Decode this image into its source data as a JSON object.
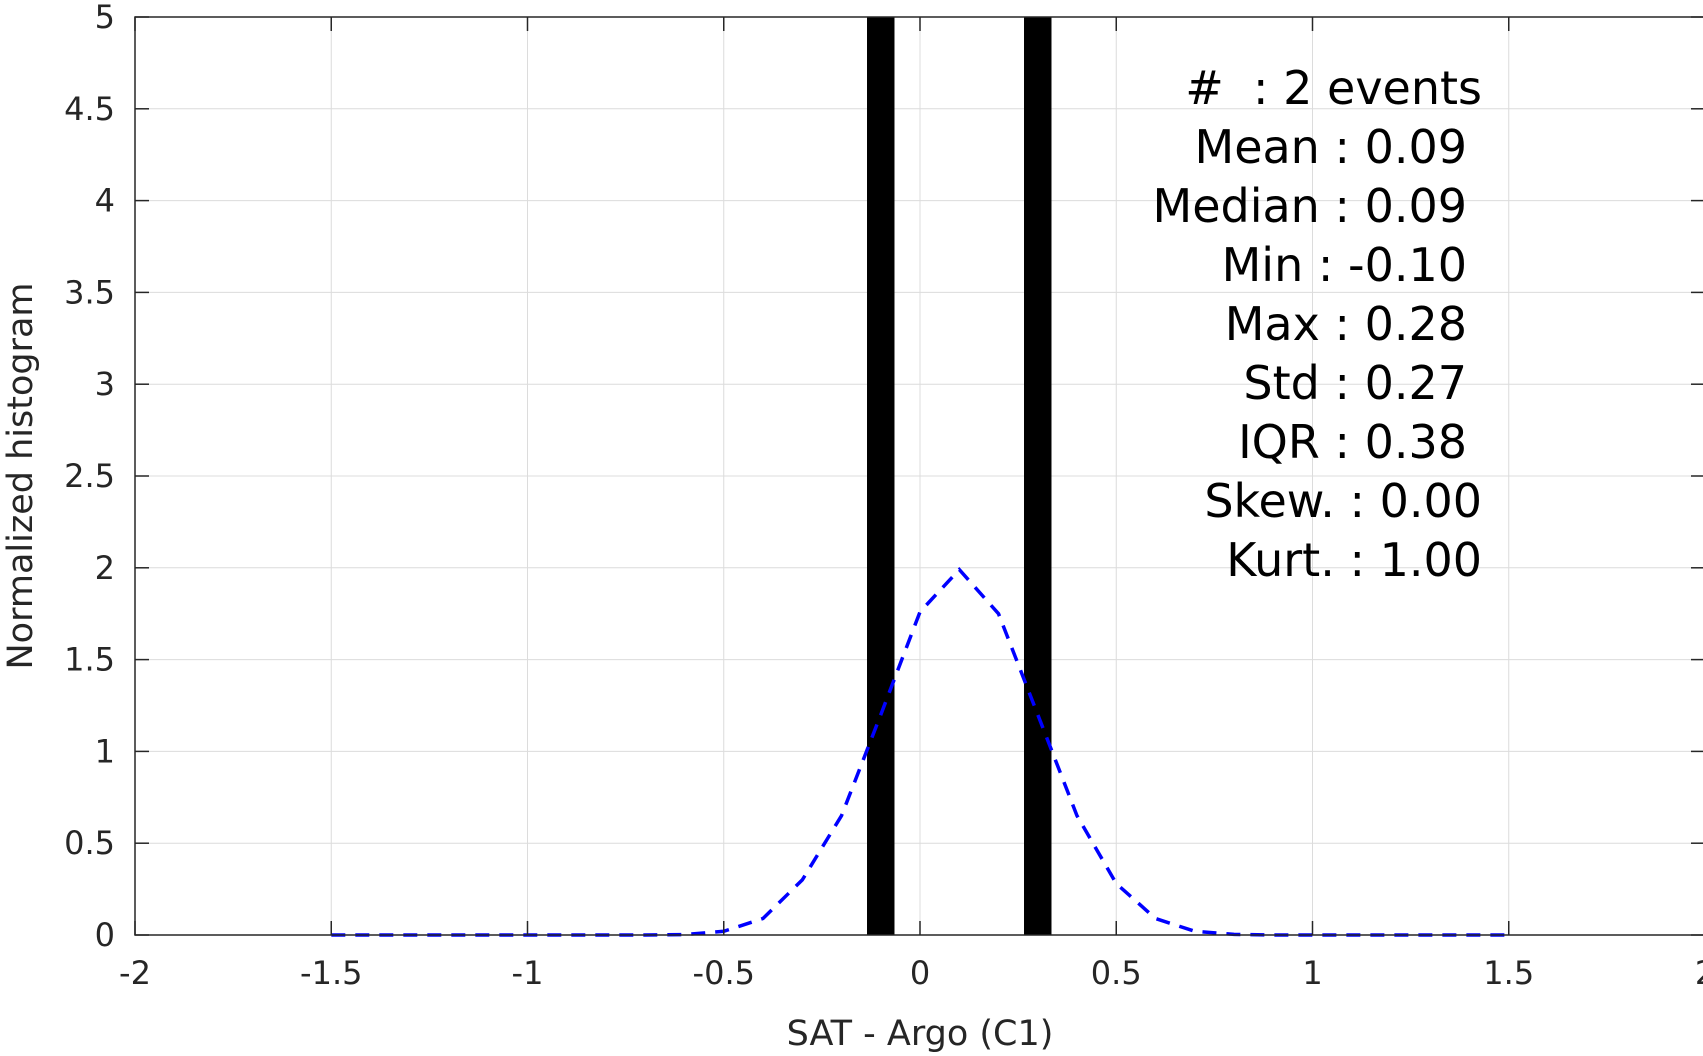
{
  "chart_data": {
    "type": "bar",
    "xlabel": "SAT - Argo (C1)",
    "ylabel": "Normalized histogram",
    "xlim": [
      -2,
      2
    ],
    "ylim": [
      0,
      5
    ],
    "grid": true,
    "x_ticks": [
      "-2",
      "-1.5",
      "-1",
      "-0.5",
      "0",
      "0.5",
      "1",
      "1.5",
      "2"
    ],
    "y_ticks": [
      "0",
      "0.5",
      "1",
      "1.5",
      "2",
      "2.5",
      "3",
      "3.5",
      "4",
      "4.5",
      "5"
    ],
    "bars": {
      "color": "#000000",
      "items": [
        {
          "x": -0.1,
          "width": 0.07,
          "height": 5
        },
        {
          "x": 0.3,
          "width": 0.07,
          "height": 5
        }
      ]
    },
    "fit_curve": {
      "style": "dashed",
      "color": "#0000ff",
      "x": [
        -1.5,
        -1.4,
        -1.3,
        -1.2,
        -1.1,
        -1.0,
        -0.9,
        -0.8,
        -0.7,
        -0.6,
        -0.5,
        -0.4,
        -0.3,
        -0.2,
        -0.1,
        0.0,
        0.1,
        0.2,
        0.3,
        0.4,
        0.5,
        0.6,
        0.7,
        0.8,
        0.9,
        1.0,
        1.1,
        1.2,
        1.3,
        1.4,
        1.5
      ],
      "y": [
        0,
        0,
        0,
        0,
        0,
        0,
        0,
        0,
        0,
        0.002,
        0.02,
        0.09,
        0.3,
        0.65,
        1.2,
        1.76,
        1.99,
        1.75,
        1.2,
        0.65,
        0.28,
        0.09,
        0.02,
        0.003,
        0,
        0,
        0,
        0,
        0,
        0,
        0
      ]
    },
    "annotation": [
      "#  : 2 events",
      "Mean : 0.09",
      "Median : 0.09",
      "Min : -0.10",
      "Max : 0.28",
      "Std : 0.27",
      "IQR : 0.38",
      "Skew. : 0.00",
      "Kurt. : 1.00"
    ]
  }
}
